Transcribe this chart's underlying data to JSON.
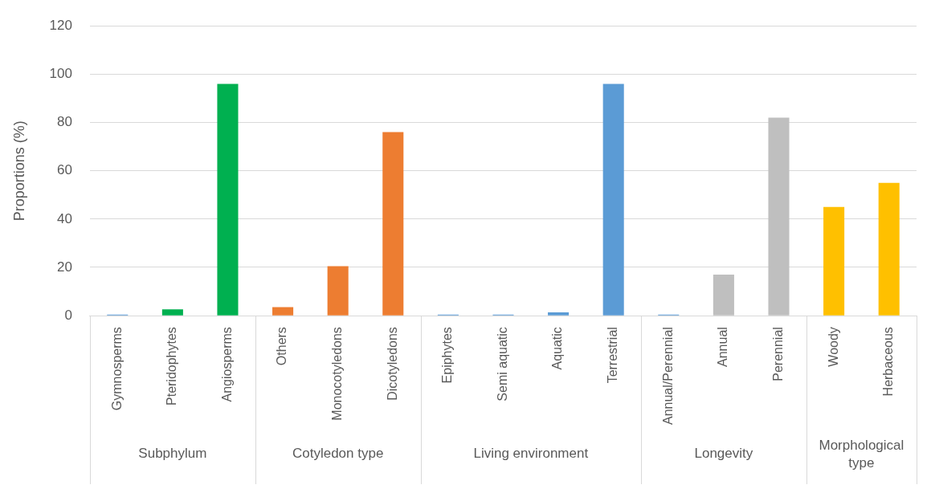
{
  "chart_data": {
    "type": "bar",
    "ylabel": "Proportions (%)",
    "categories": [
      "Gymnosperms",
      "Pteridophytes",
      "Angiosperms",
      "Others",
      "Monocotyledons",
      "Dicotyledons",
      "Epiphytes",
      "Semi aquatic",
      "Aquatic",
      "Terrestrial",
      "Annual/Perennial",
      "Annual",
      "Perennial",
      "Woody",
      "Herbaceous"
    ],
    "series": [
      {
        "colors": [
          "#5b9bd5",
          "#00b050",
          "#00b050",
          null,
          null,
          null,
          null,
          null,
          null,
          null,
          null,
          null,
          null,
          null,
          null
        ],
        "values": [
          0.5,
          2.6,
          96,
          null,
          null,
          null,
          null,
          null,
          null,
          null,
          null,
          null,
          null,
          null,
          null
        ]
      },
      {
        "colors": [
          null,
          null,
          null,
          "#ed7d31",
          "#ed7d31",
          "#ed7d31",
          null,
          null,
          null,
          null,
          null,
          null,
          null,
          null,
          null
        ],
        "values": [
          null,
          null,
          null,
          3.5,
          20.5,
          76,
          null,
          null,
          null,
          null,
          null,
          null,
          null,
          null,
          null
        ]
      },
      {
        "colors": [
          null,
          null,
          null,
          null,
          null,
          null,
          "#5b9bd5",
          "#5b9bd5",
          "#5b9bd5",
          "#5b9bd5",
          null,
          null,
          null,
          null,
          null
        ],
        "values": [
          null,
          null,
          null,
          null,
          null,
          null,
          0.5,
          0.5,
          1.4,
          96,
          null,
          null,
          null,
          null,
          null
        ]
      },
      {
        "colors": [
          null,
          null,
          null,
          null,
          null,
          null,
          null,
          null,
          null,
          null,
          "#5b9bd5",
          "#bfbfbf",
          "#bfbfbf",
          null,
          null
        ],
        "values": [
          null,
          null,
          null,
          null,
          null,
          null,
          null,
          null,
          null,
          null,
          0.5,
          17,
          82,
          null,
          null
        ]
      },
      {
        "colors": [
          null,
          null,
          null,
          null,
          null,
          null,
          null,
          null,
          null,
          null,
          null,
          null,
          null,
          "#ffc000",
          "#ffc000"
        ],
        "values": [
          null,
          null,
          null,
          null,
          null,
          null,
          null,
          null,
          null,
          null,
          null,
          null,
          null,
          45,
          55
        ]
      }
    ],
    "annotations": [
      "Subphylum",
      "Cotyledon type",
      "Living environment",
      "Longevity",
      "Morphological type"
    ],
    "ylim": [
      0,
      120
    ],
    "yticks": [
      0,
      20,
      40,
      60,
      80,
      100,
      120
    ],
    "grid": "y",
    "legend": false
  }
}
